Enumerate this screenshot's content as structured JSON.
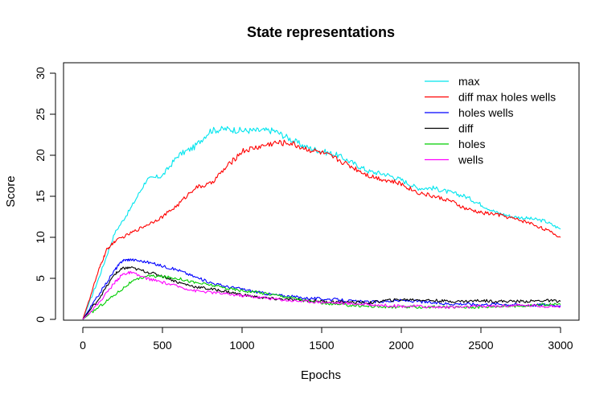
{
  "chart_data": {
    "type": "line",
    "title": "State representations",
    "xlabel": "Epochs",
    "ylabel": "Score",
    "xlim": [
      0,
      3000
    ],
    "ylim": [
      0,
      30
    ],
    "xticks": [
      0,
      500,
      1000,
      1500,
      2000,
      2500,
      3000
    ],
    "yticks": [
      0,
      5,
      10,
      15,
      20,
      25,
      30
    ],
    "grid": false,
    "legend_position": "top-right",
    "series": [
      {
        "name": "max",
        "color": "#00e5ee",
        "points": [
          [
            0,
            0
          ],
          [
            100,
            5
          ],
          [
            200,
            10.5
          ],
          [
            300,
            13.5
          ],
          [
            400,
            17
          ],
          [
            500,
            17.5
          ],
          [
            600,
            20
          ],
          [
            700,
            21
          ],
          [
            800,
            23
          ],
          [
            900,
            23.2
          ],
          [
            1000,
            23
          ],
          [
            1100,
            23
          ],
          [
            1200,
            23
          ],
          [
            1300,
            22
          ],
          [
            1400,
            21
          ],
          [
            1500,
            20.5
          ],
          [
            1600,
            20
          ],
          [
            1700,
            19
          ],
          [
            1800,
            18
          ],
          [
            1900,
            17.7
          ],
          [
            2000,
            17
          ],
          [
            2100,
            16
          ],
          [
            2200,
            16
          ],
          [
            2300,
            15.5
          ],
          [
            2400,
            15
          ],
          [
            2500,
            14
          ],
          [
            2600,
            13
          ],
          [
            2700,
            12.5
          ],
          [
            2800,
            12.3
          ],
          [
            2900,
            12
          ],
          [
            3000,
            11
          ]
        ]
      },
      {
        "name": "diff max holes wells",
        "color": "#ff0000",
        "points": [
          [
            0,
            0
          ],
          [
            100,
            6
          ],
          [
            150,
            8.5
          ],
          [
            200,
            9.5
          ],
          [
            300,
            10.5
          ],
          [
            400,
            11.5
          ],
          [
            500,
            12.5
          ],
          [
            600,
            14
          ],
          [
            700,
            16
          ],
          [
            800,
            16.5
          ],
          [
            900,
            18.5
          ],
          [
            1000,
            20.5
          ],
          [
            1100,
            21
          ],
          [
            1200,
            21.5
          ],
          [
            1300,
            21.5
          ],
          [
            1400,
            20.8
          ],
          [
            1500,
            20.3
          ],
          [
            1600,
            19.5
          ],
          [
            1700,
            18.5
          ],
          [
            1800,
            17.5
          ],
          [
            1900,
            17
          ],
          [
            2000,
            16.5
          ],
          [
            2100,
            15.5
          ],
          [
            2200,
            15
          ],
          [
            2300,
            14.5
          ],
          [
            2400,
            13.5
          ],
          [
            2500,
            13
          ],
          [
            2600,
            12.8
          ],
          [
            2700,
            12.3
          ],
          [
            2800,
            11.8
          ],
          [
            2900,
            11
          ],
          [
            3000,
            10
          ]
        ]
      },
      {
        "name": "holes wells",
        "color": "#0000ff",
        "points": [
          [
            0,
            0
          ],
          [
            100,
            3
          ],
          [
            200,
            6
          ],
          [
            250,
            7.2
          ],
          [
            300,
            7.3
          ],
          [
            400,
            7
          ],
          [
            500,
            6.5
          ],
          [
            600,
            6
          ],
          [
            700,
            5.2
          ],
          [
            800,
            4.5
          ],
          [
            900,
            4
          ],
          [
            1000,
            3.7
          ],
          [
            1100,
            3.3
          ],
          [
            1200,
            3
          ],
          [
            1300,
            2.8
          ],
          [
            1400,
            2.6
          ],
          [
            1500,
            2.5
          ],
          [
            1600,
            2.4
          ],
          [
            1700,
            2.2
          ],
          [
            1800,
            2.1
          ],
          [
            1900,
            2.2
          ],
          [
            2000,
            2.3
          ],
          [
            2100,
            2.2
          ],
          [
            2200,
            2
          ],
          [
            2300,
            1.9
          ],
          [
            2400,
            1.9
          ],
          [
            2500,
            1.8
          ],
          [
            2600,
            1.9
          ],
          [
            2700,
            1.8
          ],
          [
            2800,
            1.7
          ],
          [
            2900,
            1.8
          ],
          [
            3000,
            1.7
          ]
        ]
      },
      {
        "name": "diff",
        "color": "#000000",
        "points": [
          [
            0,
            0
          ],
          [
            100,
            2.5
          ],
          [
            200,
            5.5
          ],
          [
            250,
            6.2
          ],
          [
            300,
            6.3
          ],
          [
            400,
            5.8
          ],
          [
            500,
            5.3
          ],
          [
            600,
            4.5
          ],
          [
            700,
            4
          ],
          [
            800,
            3.7
          ],
          [
            900,
            3.4
          ],
          [
            1000,
            3
          ],
          [
            1100,
            2.7
          ],
          [
            1200,
            2.5
          ],
          [
            1300,
            2.4
          ],
          [
            1400,
            2.3
          ],
          [
            1500,
            2.2
          ],
          [
            1600,
            2.1
          ],
          [
            1700,
            2.1
          ],
          [
            1800,
            2
          ],
          [
            1900,
            2.3
          ],
          [
            2000,
            2.4
          ],
          [
            2100,
            2.4
          ],
          [
            2200,
            2.3
          ],
          [
            2300,
            2.2
          ],
          [
            2400,
            2.2
          ],
          [
            2500,
            2.3
          ],
          [
            2600,
            2.2
          ],
          [
            2700,
            2.2
          ],
          [
            2800,
            2.2
          ],
          [
            2900,
            2.3
          ],
          [
            3000,
            2.2
          ]
        ]
      },
      {
        "name": "holes",
        "color": "#00cd00",
        "points": [
          [
            0,
            0
          ],
          [
            100,
            1.5
          ],
          [
            200,
            3
          ],
          [
            300,
            4.5
          ],
          [
            400,
            5.3
          ],
          [
            500,
            5.2
          ],
          [
            600,
            5
          ],
          [
            700,
            4.5
          ],
          [
            800,
            4.2
          ],
          [
            900,
            3.8
          ],
          [
            1000,
            3.5
          ],
          [
            1100,
            3.3
          ],
          [
            1200,
            3
          ],
          [
            1300,
            2.7
          ],
          [
            1400,
            2.3
          ],
          [
            1500,
            2
          ],
          [
            1600,
            1.8
          ],
          [
            1700,
            1.7
          ],
          [
            1800,
            1.6
          ],
          [
            1900,
            1.5
          ],
          [
            2000,
            1.5
          ],
          [
            2100,
            1.5
          ],
          [
            2200,
            1.5
          ],
          [
            2300,
            1.5
          ],
          [
            2400,
            1.5
          ],
          [
            2500,
            1.5
          ],
          [
            2600,
            1.6
          ],
          [
            2700,
            1.6
          ],
          [
            2800,
            1.7
          ],
          [
            2900,
            1.8
          ],
          [
            3000,
            1.8
          ]
        ]
      },
      {
        "name": "wells",
        "color": "#ff00ff",
        "points": [
          [
            0,
            0
          ],
          [
            100,
            2
          ],
          [
            200,
            4.5
          ],
          [
            250,
            5.5
          ],
          [
            300,
            5.7
          ],
          [
            400,
            5
          ],
          [
            500,
            4.5
          ],
          [
            600,
            4
          ],
          [
            700,
            3.5
          ],
          [
            800,
            3.3
          ],
          [
            900,
            3.1
          ],
          [
            1000,
            2.9
          ],
          [
            1100,
            2.7
          ],
          [
            1200,
            2.5
          ],
          [
            1300,
            2.3
          ],
          [
            1400,
            2.2
          ],
          [
            1500,
            2.1
          ],
          [
            1600,
            2
          ],
          [
            1700,
            1.9
          ],
          [
            1800,
            1.8
          ],
          [
            1900,
            1.7
          ],
          [
            2000,
            1.6
          ],
          [
            2100,
            1.6
          ],
          [
            2200,
            1.5
          ],
          [
            2300,
            1.5
          ],
          [
            2400,
            1.5
          ],
          [
            2500,
            1.6
          ],
          [
            2600,
            1.6
          ],
          [
            2700,
            1.7
          ],
          [
            2800,
            1.7
          ],
          [
            2900,
            1.6
          ],
          [
            3000,
            1.6
          ]
        ]
      }
    ]
  }
}
